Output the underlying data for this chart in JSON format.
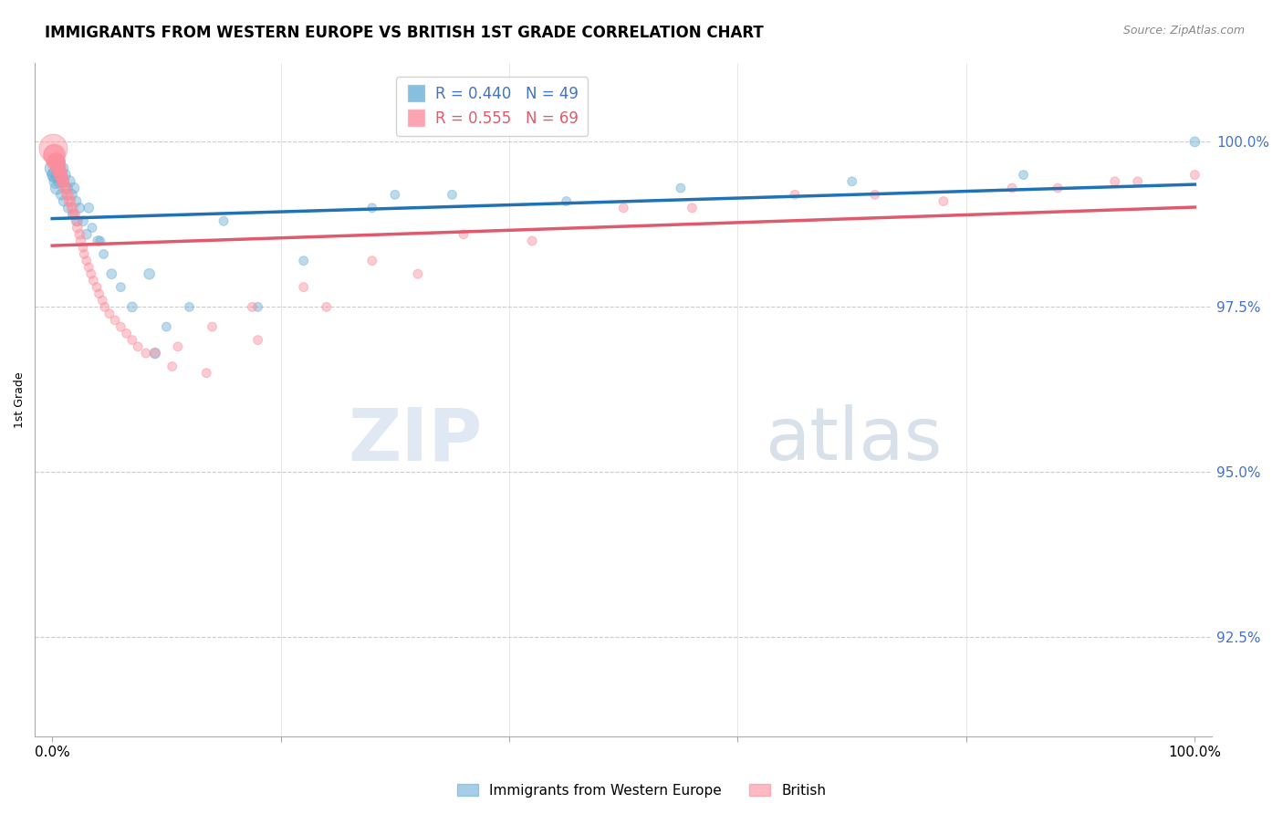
{
  "title": "IMMIGRANTS FROM WESTERN EUROPE VS BRITISH 1ST GRADE CORRELATION CHART",
  "source": "Source: ZipAtlas.com",
  "ylabel": "1st Grade",
  "yticks": [
    100.0,
    97.5,
    95.0,
    92.5
  ],
  "ytick_labels": [
    "100.0%",
    "97.5%",
    "95.0%",
    "92.5%"
  ],
  "legend_label1": "Immigrants from Western Europe",
  "legend_label2": "British",
  "r1": 0.44,
  "n1": 49,
  "r2": 0.555,
  "n2": 69,
  "color1": "#6baed6",
  "color2": "#fc8d9c",
  "line_color1": "#2171b5",
  "line_color2": "#e05a6e",
  "watermark_zip": "ZIP",
  "watermark_atlas": "atlas",
  "blue_x": [
    0.15,
    0.25,
    0.35,
    0.45,
    0.55,
    0.65,
    0.75,
    0.85,
    0.95,
    1.1,
    1.3,
    1.5,
    1.7,
    1.9,
    2.1,
    2.4,
    2.7,
    3.0,
    3.5,
    4.0,
    4.5,
    5.2,
    6.0,
    7.0,
    8.5,
    10.0,
    12.0,
    15.0,
    18.0,
    22.0,
    28.0,
    35.0,
    45.0,
    55.0,
    70.0,
    85.0,
    100.0,
    0.2,
    0.4,
    0.6,
    0.8,
    1.0,
    1.4,
    1.8,
    2.2,
    3.2,
    4.2,
    9.0,
    30.0
  ],
  "blue_y": [
    99.6,
    99.5,
    99.4,
    99.5,
    99.6,
    99.7,
    99.5,
    99.4,
    99.6,
    99.5,
    99.3,
    99.4,
    99.2,
    99.3,
    99.1,
    99.0,
    98.8,
    98.6,
    98.7,
    98.5,
    98.3,
    98.0,
    97.8,
    97.5,
    98.0,
    97.2,
    97.5,
    98.8,
    97.5,
    98.2,
    99.0,
    99.2,
    99.1,
    99.3,
    99.4,
    99.5,
    100.0,
    99.5,
    99.3,
    99.4,
    99.2,
    99.1,
    99.0,
    98.9,
    98.8,
    99.0,
    98.5,
    96.8,
    99.2
  ],
  "blue_size": [
    200,
    150,
    120,
    100,
    90,
    80,
    80,
    70,
    70,
    80,
    70,
    80,
    70,
    70,
    60,
    60,
    60,
    60,
    50,
    60,
    50,
    60,
    50,
    60,
    70,
    50,
    50,
    50,
    50,
    50,
    50,
    50,
    50,
    50,
    50,
    50,
    60,
    120,
    100,
    80,
    70,
    60,
    60,
    60,
    60,
    60,
    50,
    70,
    50
  ],
  "pink_x": [
    0.1,
    0.2,
    0.3,
    0.4,
    0.5,
    0.6,
    0.7,
    0.8,
    0.9,
    1.0,
    1.2,
    1.4,
    1.6,
    1.8,
    2.0,
    2.2,
    2.5,
    2.8,
    3.2,
    3.6,
    4.1,
    4.6,
    5.5,
    6.5,
    7.5,
    9.0,
    11.0,
    14.0,
    17.5,
    22.0,
    28.0,
    36.0,
    50.0,
    65.0,
    78.0,
    88.0,
    95.0,
    100.0,
    0.15,
    0.35,
    0.55,
    0.75,
    0.95,
    1.1,
    1.3,
    1.5,
    1.7,
    1.9,
    2.1,
    2.4,
    2.7,
    3.0,
    3.4,
    3.9,
    4.4,
    5.0,
    6.0,
    7.0,
    8.2,
    10.5,
    13.5,
    18.0,
    24.0,
    32.0,
    42.0,
    56.0,
    72.0,
    84.0,
    93.0
  ],
  "pink_y": [
    99.9,
    99.8,
    99.7,
    99.7,
    99.6,
    99.6,
    99.5,
    99.5,
    99.4,
    99.4,
    99.3,
    99.2,
    99.1,
    99.0,
    98.9,
    98.7,
    98.5,
    98.3,
    98.1,
    97.9,
    97.7,
    97.5,
    97.3,
    97.1,
    96.9,
    96.8,
    96.9,
    97.2,
    97.5,
    97.8,
    98.2,
    98.6,
    99.0,
    99.2,
    99.1,
    99.3,
    99.4,
    99.5,
    99.8,
    99.7,
    99.6,
    99.5,
    99.4,
    99.3,
    99.2,
    99.1,
    99.0,
    98.9,
    98.8,
    98.6,
    98.4,
    98.2,
    98.0,
    97.8,
    97.6,
    97.4,
    97.2,
    97.0,
    96.8,
    96.6,
    96.5,
    97.0,
    97.5,
    98.0,
    98.5,
    99.0,
    99.2,
    99.3,
    99.4
  ],
  "pink_size": [
    500,
    300,
    200,
    160,
    130,
    110,
    100,
    90,
    80,
    80,
    70,
    70,
    60,
    60,
    60,
    60,
    60,
    50,
    50,
    50,
    50,
    50,
    50,
    50,
    50,
    50,
    50,
    50,
    50,
    50,
    50,
    50,
    50,
    50,
    50,
    50,
    50,
    50,
    250,
    180,
    140,
    110,
    90,
    80,
    70,
    70,
    60,
    60,
    60,
    60,
    50,
    50,
    50,
    50,
    50,
    50,
    50,
    50,
    50,
    50,
    50,
    50,
    50,
    50,
    50,
    50,
    50,
    50,
    50
  ]
}
